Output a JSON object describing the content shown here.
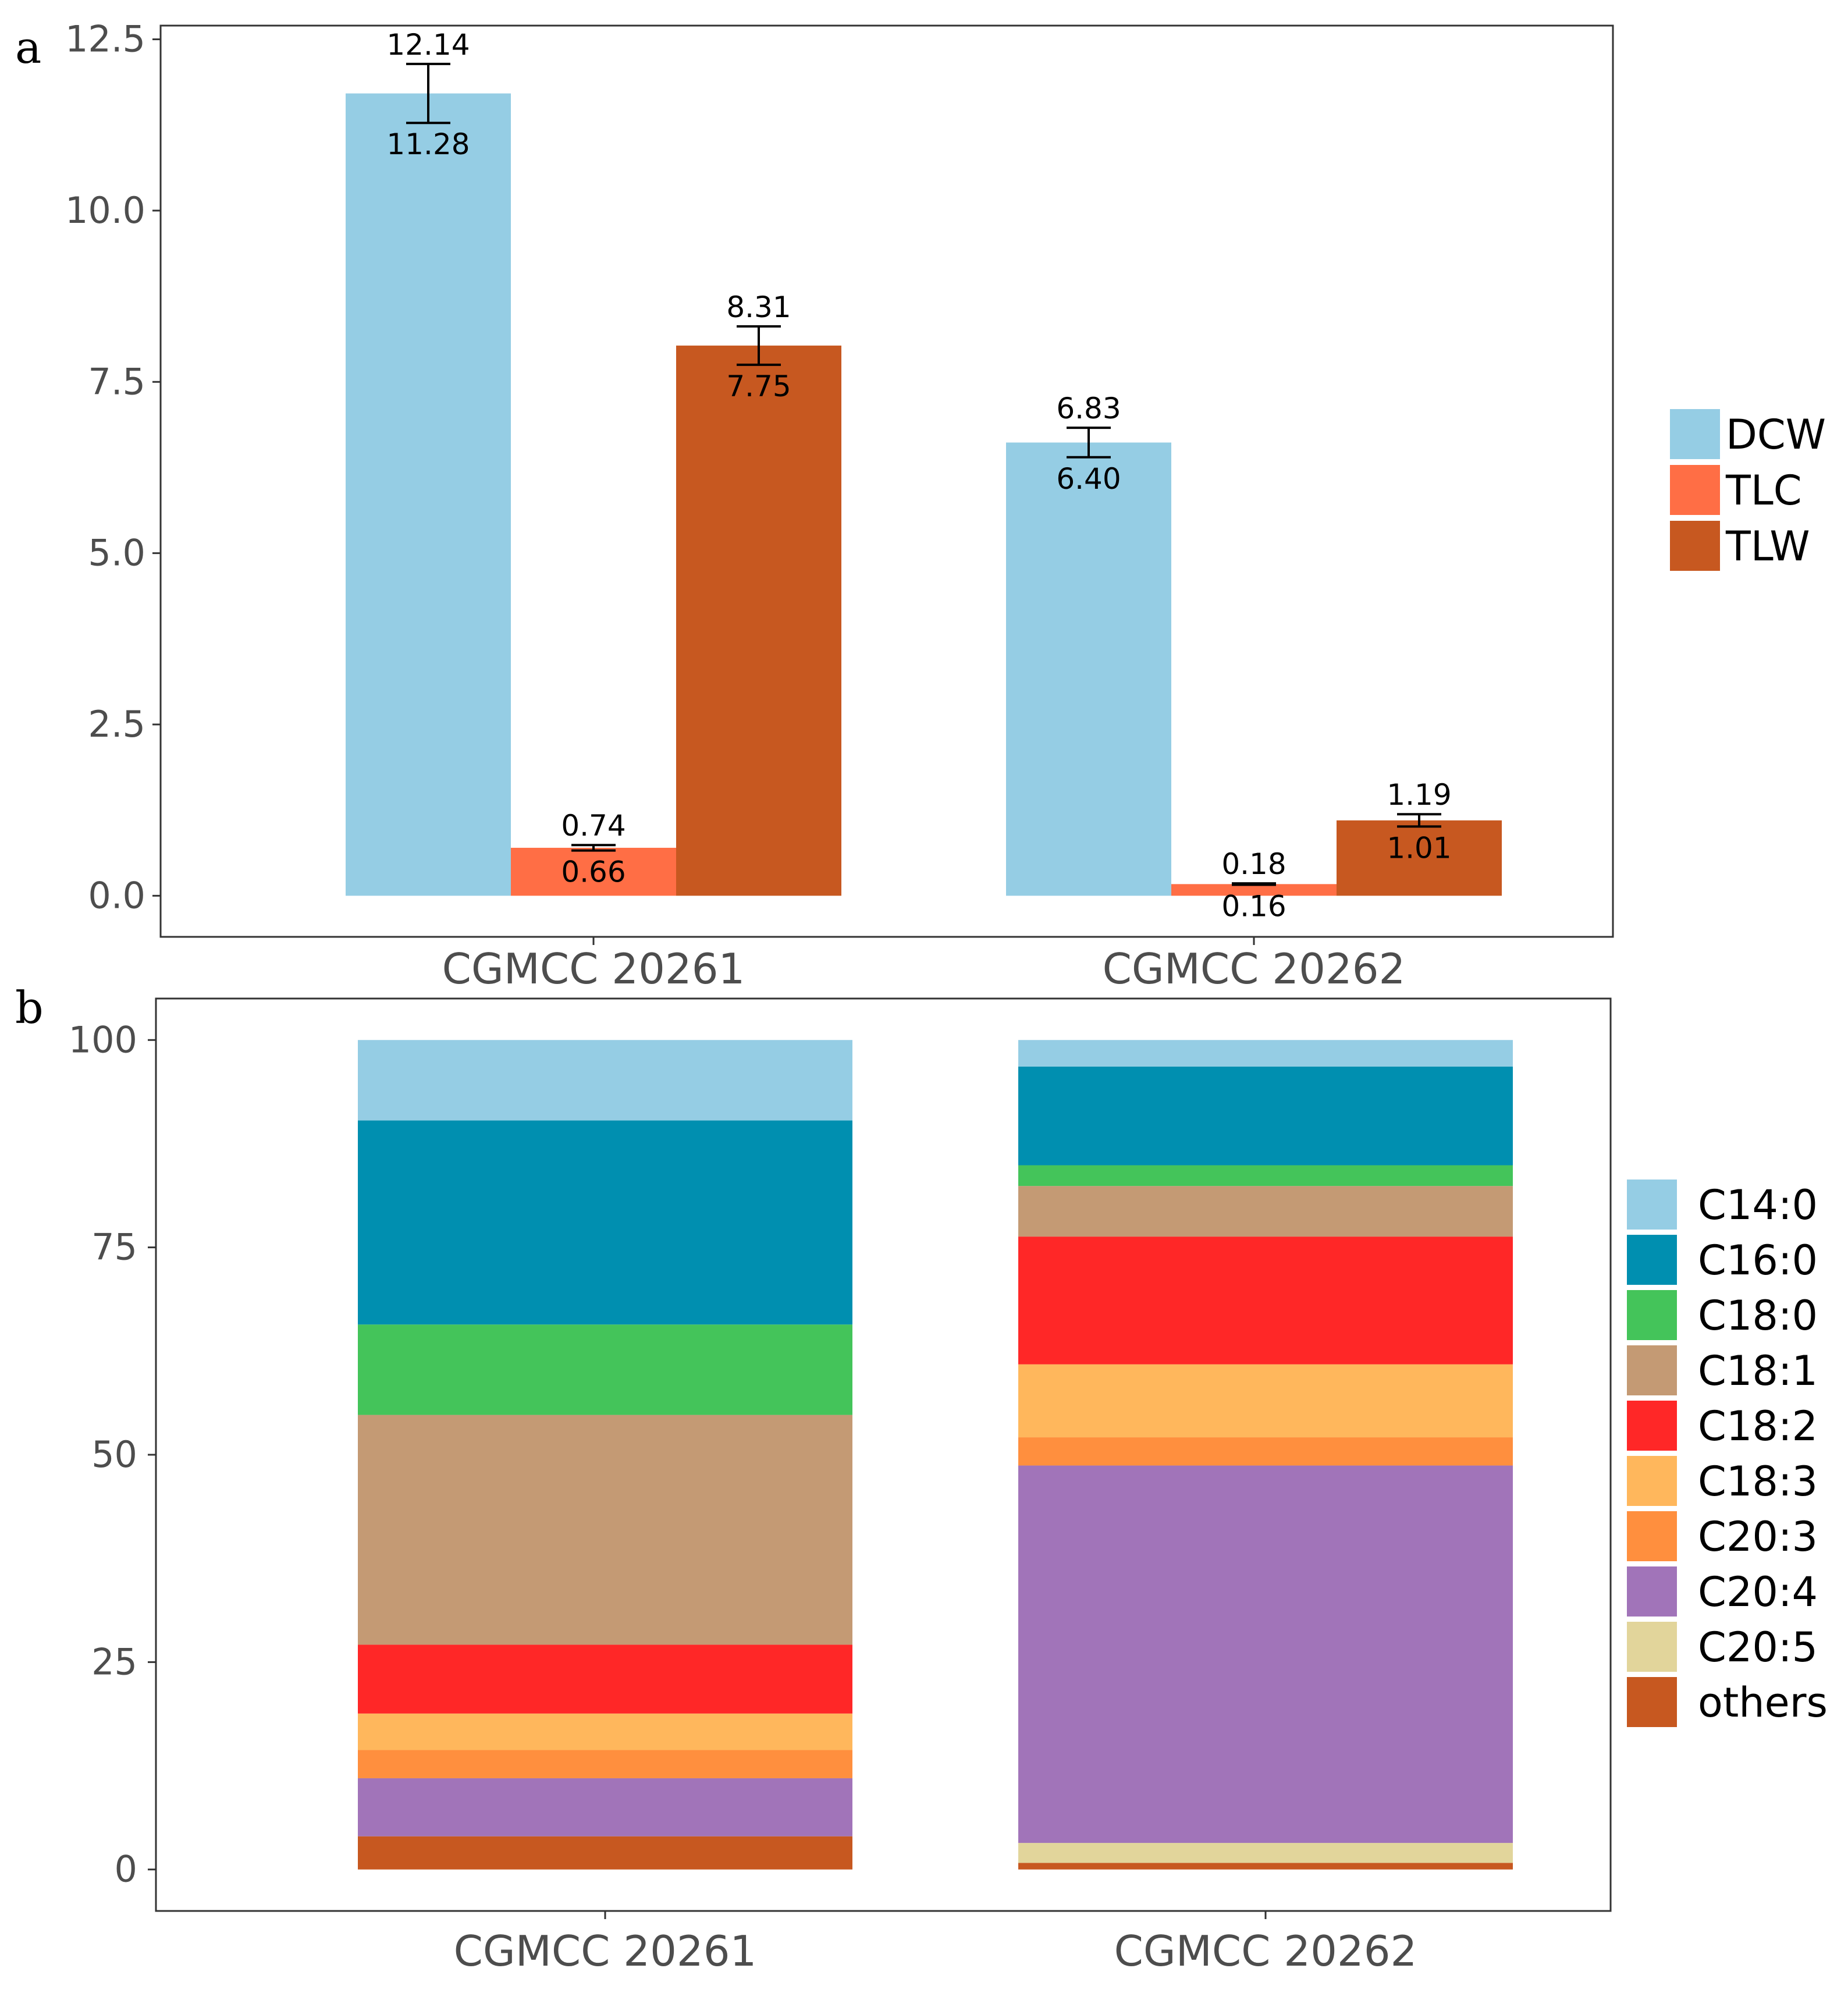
{
  "chart_data": [
    {
      "panel_label": "a",
      "type": "bar",
      "categories": [
        "CGMCC 20261",
        "CGMCC 20262"
      ],
      "series": [
        {
          "name": "DCW",
          "color": "#95CDE4",
          "values": [
            11.71,
            6.615
          ],
          "err_low": [
            11.28,
            6.4
          ],
          "err_high": [
            12.14,
            6.83
          ],
          "err_low_label": [
            "11.28",
            "6.40"
          ],
          "err_high_label": [
            "12.14",
            "6.83"
          ]
        },
        {
          "name": "TLC",
          "color": "#FF6E45",
          "values": [
            0.7,
            0.17
          ],
          "err_low": [
            0.66,
            0.16
          ],
          "err_high": [
            0.74,
            0.18
          ],
          "err_low_label": [
            "0.66",
            "0.16"
          ],
          "err_high_label": [
            "0.74",
            "0.18"
          ]
        },
        {
          "name": "TLW",
          "color": "#C75820",
          "values": [
            8.03,
            1.1
          ],
          "err_low": [
            7.75,
            1.01
          ],
          "err_high": [
            8.31,
            1.19
          ],
          "err_low_label": [
            "7.75",
            "1.01"
          ],
          "err_high_label": [
            "8.31",
            "1.19"
          ]
        }
      ],
      "ylim": [
        -0.6,
        12.7
      ],
      "yticks": [
        "0.0",
        "2.5",
        "5.0",
        "7.5",
        "10.0",
        "12.5"
      ],
      "grid": false,
      "legend_position": "right"
    },
    {
      "panel_label": "b",
      "type": "bar",
      "stacked": true,
      "categories": [
        "CGMCC 20261",
        "CGMCC 20262"
      ],
      "series": [
        {
          "name": "others",
          "color": "#C75820",
          "values": [
            4.0,
            0.8
          ]
        },
        {
          "name": "C20:5",
          "color": "#E2D59B",
          "values": [
            0.0,
            2.4
          ]
        },
        {
          "name": "C20:4",
          "color": "#A174B9",
          "values": [
            7.0,
            45.5
          ]
        },
        {
          "name": "C20:3",
          "color": "#FF8F3E",
          "values": [
            3.4,
            3.4
          ]
        },
        {
          "name": "C18:3",
          "color": "#FFB75C",
          "values": [
            4.4,
            8.8
          ]
        },
        {
          "name": "C18:2",
          "color": "#FF2727",
          "values": [
            8.3,
            15.4
          ]
        },
        {
          "name": "C18:1",
          "color": "#C49A74",
          "values": [
            27.7,
            6.1
          ]
        },
        {
          "name": "C18:0",
          "color": "#44C45A",
          "values": [
            10.9,
            2.5
          ]
        },
        {
          "name": "C16:0",
          "color": "#008FB0",
          "values": [
            24.6,
            11.9
          ]
        },
        {
          "name": "C14:0",
          "color": "#95CDE4",
          "values": [
            9.7,
            3.2
          ]
        }
      ],
      "ylim": [
        -5,
        105
      ],
      "yticks": [
        "0",
        "25",
        "50",
        "75",
        "100"
      ],
      "grid": false,
      "legend_position": "right"
    }
  ]
}
